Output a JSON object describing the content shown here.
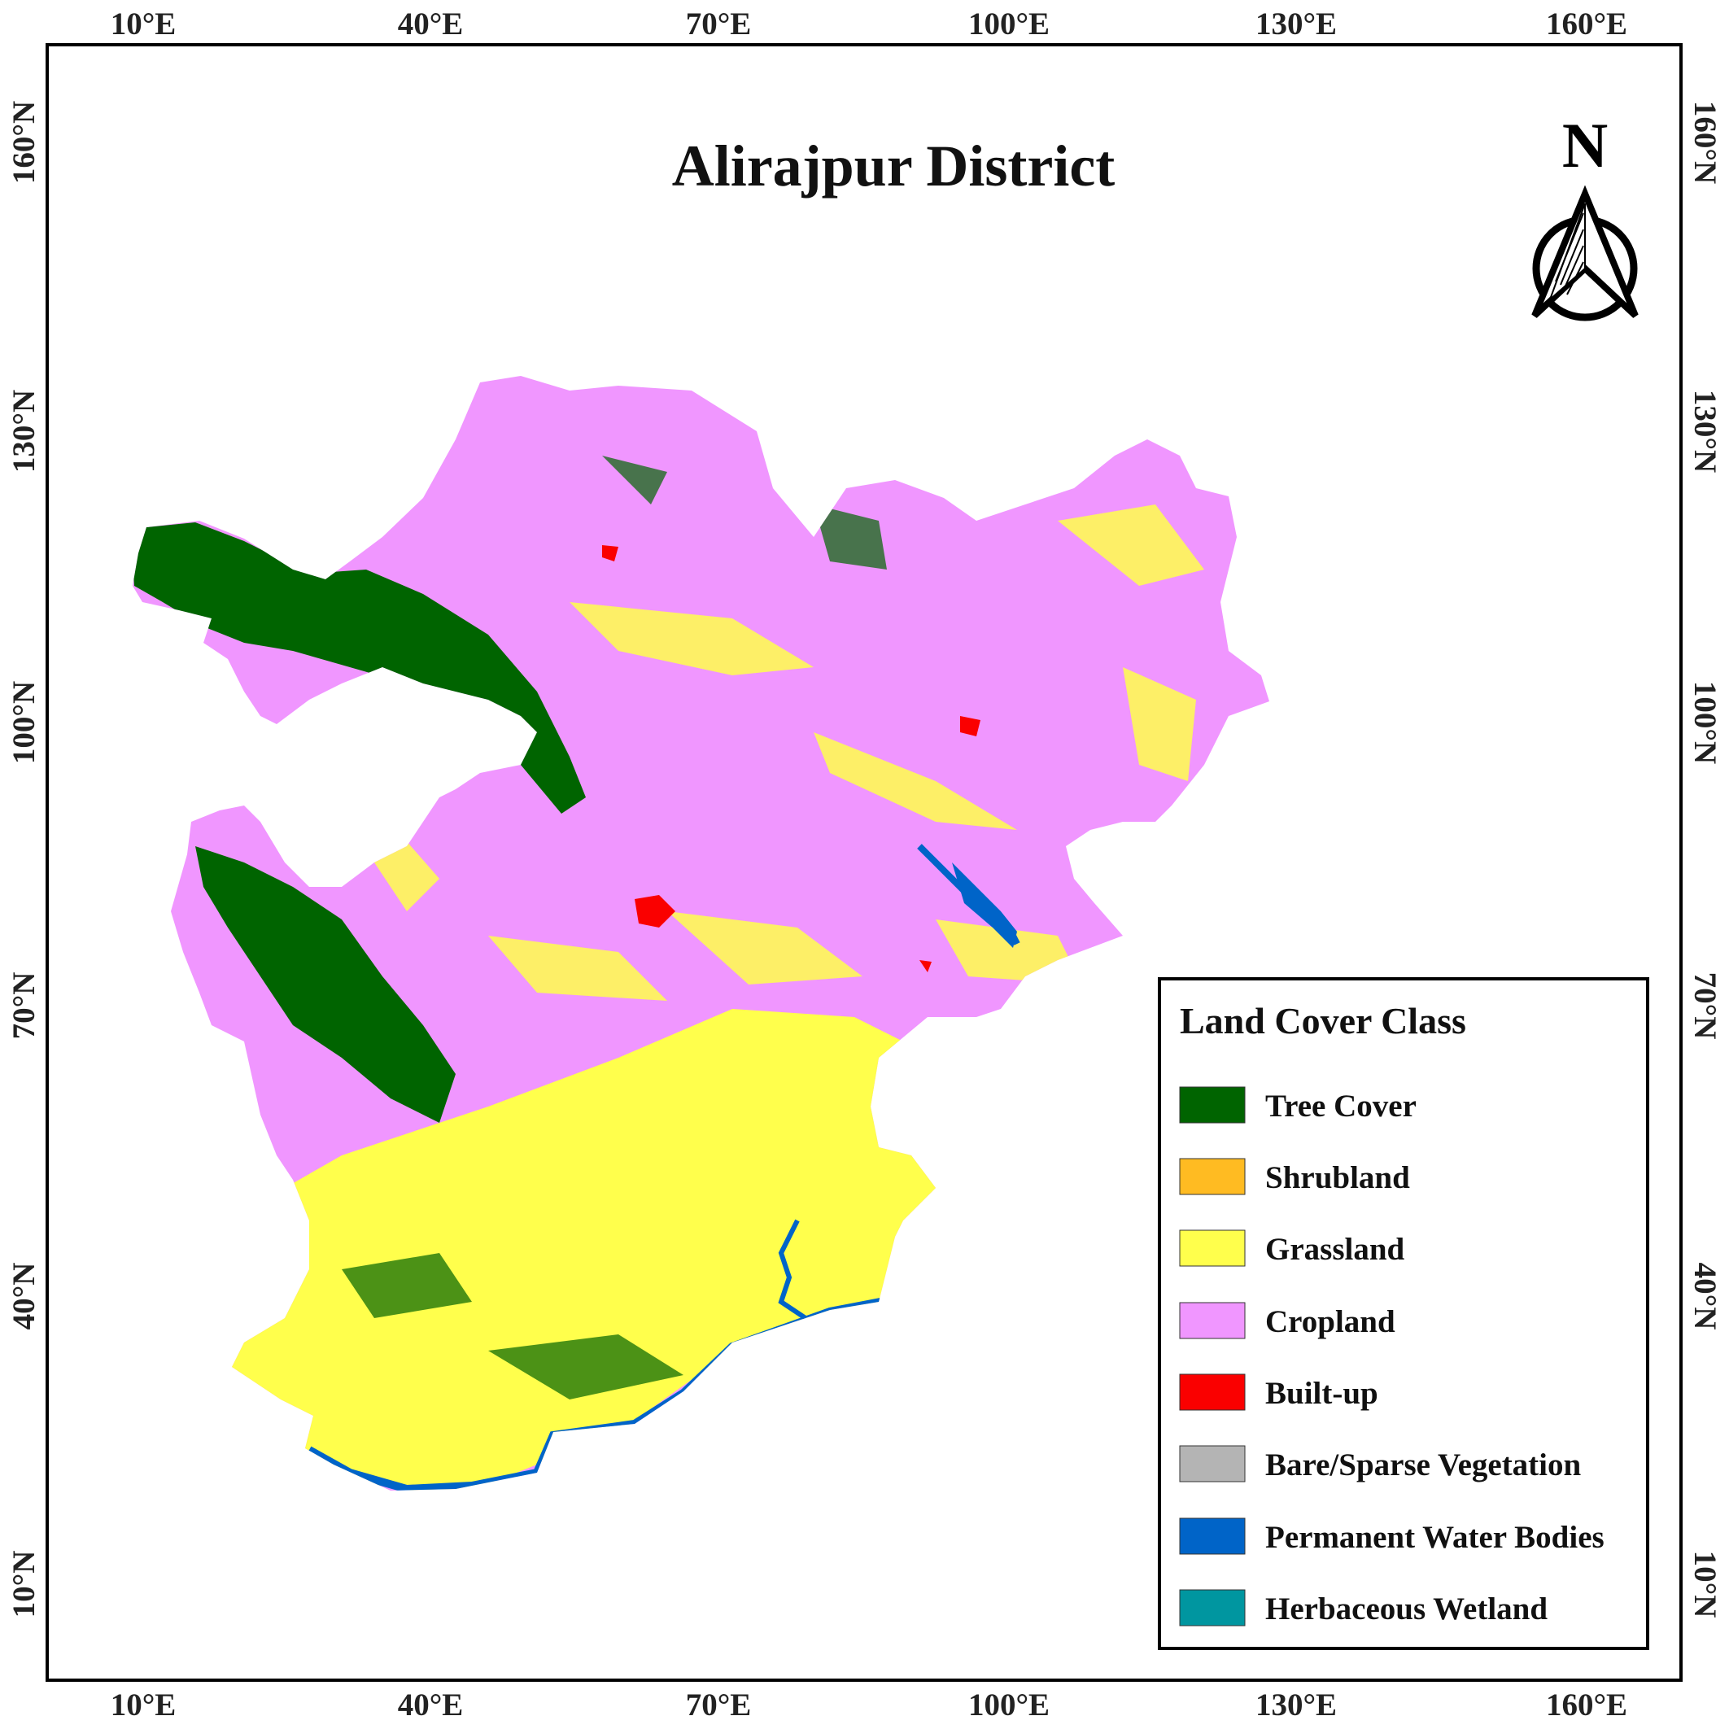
{
  "title": "Alirajpur District",
  "north_arrow": {
    "letter": "N"
  },
  "axes": {
    "x_ticks": [
      "10°E",
      "40°E",
      "70°E",
      "100°E",
      "130°E",
      "160°E"
    ],
    "y_ticks": [
      "160°N",
      "130°N",
      "100°N",
      "70°N",
      "40°N",
      "10°N"
    ]
  },
  "legend": {
    "title": "Land Cover Class",
    "items": [
      {
        "label": "Tree Cover",
        "color": "#006400"
      },
      {
        "label": "Shrubland",
        "color": "#FFBB22"
      },
      {
        "label": "Grassland",
        "color": "#FFFF4C"
      },
      {
        "label": "Cropland",
        "color": "#F096FF"
      },
      {
        "label": "Built-up",
        "color": "#FA0000"
      },
      {
        "label": "Bare/Sparse Vegetation",
        "color": "#B4B4B4"
      },
      {
        "label": "Permanent Water Bodies",
        "color": "#0064C8"
      },
      {
        "label": "Herbaceous Wetland",
        "color": "#0096A0"
      }
    ]
  }
}
